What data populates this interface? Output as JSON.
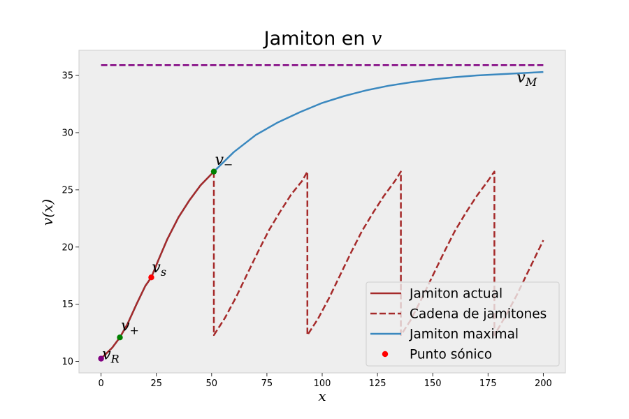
{
  "chart_data": {
    "type": "line",
    "title_text": "Jamiton en ",
    "title_var": "v",
    "xlabel": "x",
    "ylabel": "v(x)",
    "xlim": [
      -10,
      210
    ],
    "ylim": [
      9,
      37.2
    ],
    "xticks": [
      0,
      25,
      50,
      75,
      100,
      125,
      150,
      175,
      200
    ],
    "yticks": [
      10,
      15,
      20,
      25,
      30,
      35
    ],
    "grid": false,
    "legend_position": "lower-right",
    "colors": {
      "actual": "#a52a2a",
      "maximal": "#3a88bf",
      "sonic": "#ff0000",
      "vm_line": "#800080",
      "endpoint_green": "#008000",
      "endpoint_purple": "#800080",
      "background": "#eeeeee"
    },
    "series": [
      {
        "name": "Jamiton actual",
        "style": "solid",
        "color": "#a52a2a",
        "x": [
          0,
          5,
          8.5,
          12,
          16,
          20,
          22.7,
          26,
          30,
          35,
          40,
          45,
          51
        ],
        "y": [
          10.25,
          11.2,
          12.1,
          13.3,
          15.0,
          16.6,
          17.35,
          18.9,
          20.7,
          22.6,
          24.1,
          25.4,
          26.6
        ]
      },
      {
        "name": "Cadena de jamitones",
        "style": "dashed",
        "color": "#a52a2a",
        "x": [
          51,
          51,
          56,
          61,
          66,
          71,
          76,
          81,
          86,
          91,
          93.3,
          93.3,
          98,
          103,
          108,
          113,
          118,
          123,
          128,
          133,
          135.6,
          135.6,
          140,
          145,
          150,
          155,
          160,
          165,
          170,
          175,
          177.9,
          177.9,
          183,
          188,
          193,
          200
        ],
        "y": [
          26.6,
          12.3,
          13.8,
          15.6,
          17.6,
          19.6,
          21.5,
          23.1,
          24.6,
          25.8,
          26.6,
          12.3,
          13.7,
          15.5,
          17.5,
          19.5,
          21.4,
          23.0,
          24.5,
          25.8,
          26.6,
          12.3,
          13.6,
          15.5,
          17.5,
          19.5,
          21.4,
          23.0,
          24.5,
          25.8,
          26.6,
          12.3,
          14.0,
          15.8,
          17.8,
          20.6
        ]
      },
      {
        "name": "Jamiton maximal",
        "style": "solid",
        "color": "#3a88bf",
        "x": [
          0,
          5,
          8.5,
          12,
          16,
          20,
          22.7,
          26,
          30,
          35,
          40,
          45,
          51,
          60,
          70,
          80,
          90,
          100,
          110,
          120,
          130,
          140,
          150,
          160,
          170,
          180,
          190,
          200
        ],
        "y": [
          10.25,
          11.2,
          12.1,
          13.3,
          15.0,
          16.6,
          17.35,
          18.9,
          20.7,
          22.6,
          24.1,
          25.4,
          26.6,
          28.3,
          29.8,
          30.9,
          31.8,
          32.6,
          33.2,
          33.7,
          34.1,
          34.4,
          34.65,
          34.85,
          35.0,
          35.1,
          35.2,
          35.3
        ]
      },
      {
        "name": "v_M",
        "style": "dashed",
        "color": "#800080",
        "x": [
          0,
          200
        ],
        "y": [
          35.9,
          35.9
        ]
      }
    ],
    "points": [
      {
        "name": "v_R",
        "x": 0,
        "y": 10.25,
        "color": "#800080",
        "sub": "R"
      },
      {
        "name": "v_+",
        "x": 8.5,
        "y": 12.1,
        "color": "#008000",
        "sub": "+"
      },
      {
        "name": "Punto sónico",
        "x": 22.7,
        "y": 17.35,
        "color": "#ff0000",
        "sub": "s"
      },
      {
        "name": "v_-",
        "x": 51,
        "y": 26.6,
        "color": "#008000",
        "sub": "−"
      }
    ],
    "annotations": [
      {
        "id": "vR",
        "base": "v",
        "sub": "R",
        "x": 0.5,
        "y": 10.2
      },
      {
        "id": "vplus",
        "base": "v",
        "sub": "+",
        "x": 9,
        "y": 12.7
      },
      {
        "id": "vs",
        "base": "v",
        "sub": "s",
        "x": 23,
        "y": 17.8
      },
      {
        "id": "vminus",
        "base": "v",
        "sub": "−",
        "x": 51.5,
        "y": 27.2
      },
      {
        "id": "vM",
        "base": "v",
        "sub": "M",
        "x": 188,
        "y": 34.4
      }
    ],
    "legend": [
      {
        "label": "Jamiton actual",
        "kind": "solid",
        "color": "#a52a2a"
      },
      {
        "label": "Cadena de jamitones",
        "kind": "dashed",
        "color": "#a52a2a"
      },
      {
        "label": "Jamiton maximal",
        "kind": "solid",
        "color": "#3a88bf"
      },
      {
        "label": "Punto sónico",
        "kind": "dot",
        "color": "#ff0000"
      }
    ]
  }
}
